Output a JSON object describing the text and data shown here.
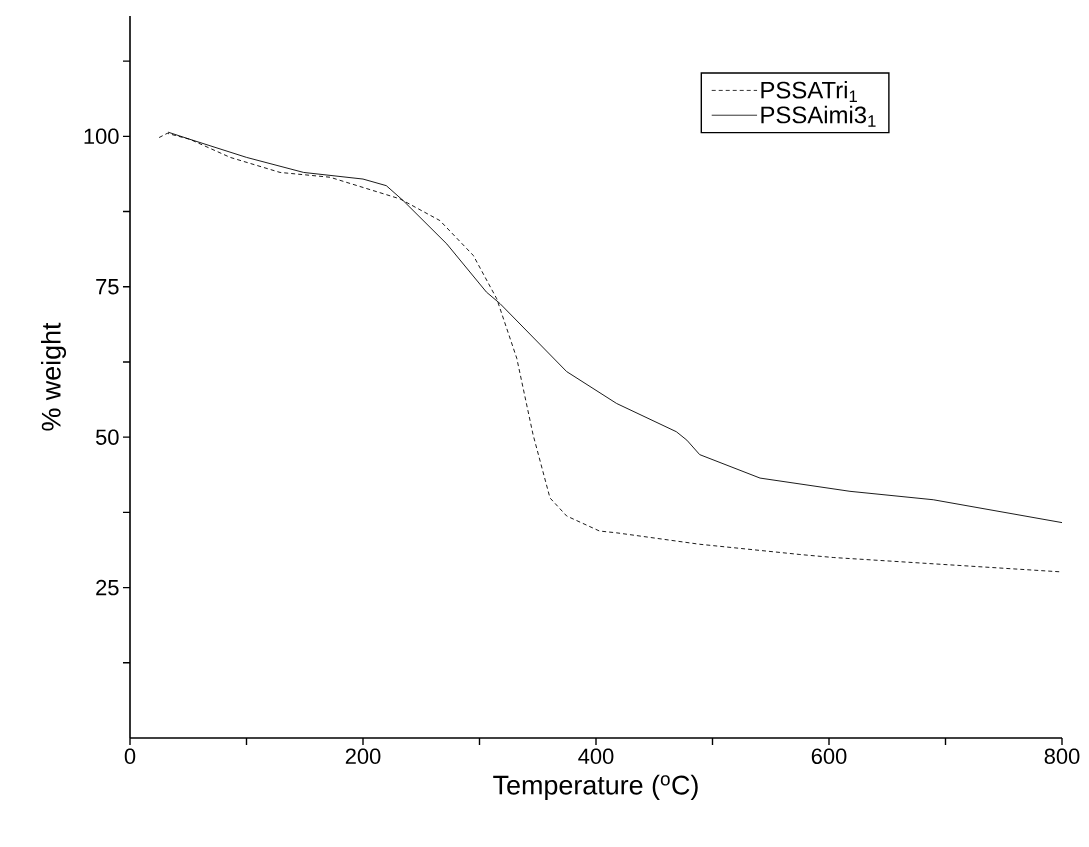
{
  "chart_data": {
    "type": "line",
    "xlabel": "Temperature ($^{o}$C)",
    "ylabel": "% weight",
    "xlim": [
      0,
      800
    ],
    "ylim": [
      0,
      120
    ],
    "xticks": [
      0,
      {
        "value": 100,
        "label": null
      },
      200,
      {
        "value": 300,
        "label": null
      },
      400,
      {
        "value": 500,
        "label": null
      },
      600,
      {
        "value": 700,
        "label": null
      },
      800
    ],
    "yticks": [
      {
        "value": 12.5,
        "label": null
      },
      25,
      {
        "value": 37.5,
        "label": null
      },
      50,
      {
        "value": 62.5,
        "label": null
      },
      75,
      {
        "value": 87.5,
        "label": null
      },
      100,
      {
        "value": 112.5,
        "label": null
      }
    ],
    "grid": false,
    "legend": "top right",
    "marker": "none",
    "series": [
      {
        "name": "PSSATri$_{1}$",
        "color": "#000000",
        "line_style": "dashed",
        "x": [
          25,
          32,
          51.5,
          86,
          128.8,
          171.7,
          231.8,
          266,
          294.7,
          314.8,
          332,
          346,
          360.5,
          374.8,
          403,
          417.7,
          489,
          575,
          603.6,
          800
        ],
        "values": [
          99.8,
          100.5,
          99.5,
          96.5,
          94.0,
          93.2,
          89.6,
          86.0,
          80.2,
          73.0,
          63.1,
          50.4,
          39.9,
          36.9,
          34.4,
          34.1,
          32.2,
          30.5,
          30.0,
          27.6
        ]
      },
      {
        "name": "PSSAimi3$_{1}$",
        "color": "#000000",
        "line_style": "solid",
        "x": [
          32.6,
          51.5,
          100,
          149,
          200,
          220,
          234.6,
          272,
          306,
          317.6,
          374.8,
          417.7,
          469,
          478,
          489,
          540.8,
          618,
          689.5,
          800
        ],
        "values": [
          100.7,
          99.5,
          96.5,
          94.0,
          92.9,
          91.8,
          89.3,
          82.1,
          74.1,
          72.2,
          60.9,
          55.6,
          50.9,
          49.5,
          47.1,
          43.2,
          41.0,
          39.6,
          35.8
        ]
      }
    ]
  }
}
